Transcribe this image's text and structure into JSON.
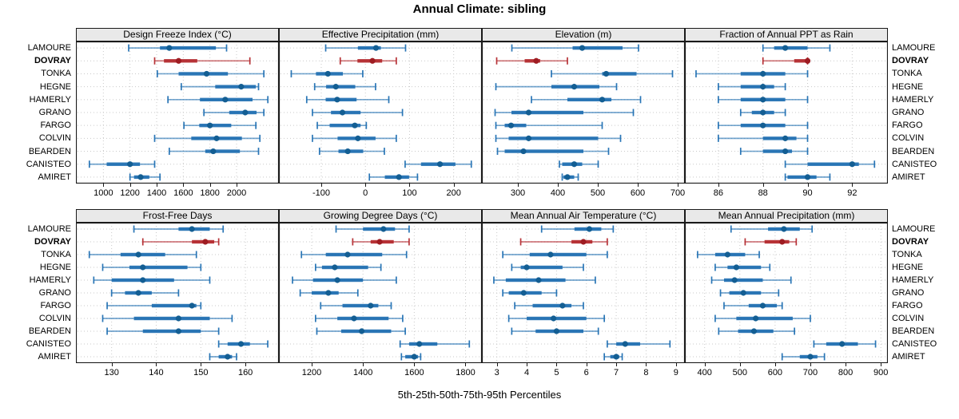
{
  "title": "Annual Climate: sibling",
  "caption": "5th-25th-50th-75th-95th Percentiles",
  "sites": [
    "LAMOURE",
    "DOVRAY",
    "TONKA",
    "HEGNE",
    "HAMERLY",
    "GRANO",
    "FARGO",
    "COLVIN",
    "BEARDEN",
    "CANISTEO",
    "AMIRET"
  ],
  "highlight_site": "DOVRAY",
  "colors": {
    "blue": "#1F6FB2",
    "blue_dark": "#135E93",
    "red": "#B3282D",
    "red_dark": "#9E1C22",
    "grid": "#C9C9C9",
    "strip_bg": "#E9E9E9",
    "panel_border": "#1A1A1A",
    "text": "#000000"
  },
  "chart_data": [
    {
      "type": "interval",
      "title": "Design Freeze Index (°C)",
      "ticks": [
        1000,
        1200,
        1400,
        1600,
        1800,
        2000
      ],
      "domain": [
        794,
        2318
      ],
      "percentile_labels": [
        "p5",
        "p25",
        "p50",
        "p75",
        "p95"
      ],
      "values": [
        [
          1190,
          1425,
          1495,
          1845,
          1925
        ],
        [
          1385,
          1455,
          1565,
          1705,
          2100
        ],
        [
          1405,
          1565,
          1775,
          1935,
          2205
        ],
        [
          1585,
          1840,
          2035,
          2145,
          2165
        ],
        [
          1485,
          1725,
          1915,
          2120,
          2235
        ],
        [
          1755,
          1945,
          2065,
          2150,
          2205
        ],
        [
          1605,
          1720,
          1800,
          1960,
          2145
        ],
        [
          1385,
          1660,
          1850,
          2040,
          2175
        ],
        [
          1495,
          1765,
          1825,
          2025,
          2165
        ],
        [
          895,
          1025,
          1200,
          1275,
          1385
        ],
        [
          1200,
          1230,
          1280,
          1345,
          1425
        ]
      ]
    },
    {
      "type": "interval",
      "title": "Effective Precipitation (mm)",
      "ticks": [
        -100,
        0,
        100,
        200
      ],
      "domain": [
        -196,
        264
      ],
      "percentile_labels": [
        "p5",
        "p25",
        "p50",
        "p75",
        "p95"
      ],
      "values": [
        [
          -90,
          -17,
          24,
          35,
          91
        ],
        [
          -57,
          -18,
          16,
          38,
          70
        ],
        [
          -168,
          -112,
          -85,
          -51,
          -6
        ],
        [
          -115,
          -89,
          -67,
          -23,
          23
        ],
        [
          -133,
          -90,
          -64,
          -20,
          53
        ],
        [
          -120,
          -78,
          -52,
          -11,
          84
        ],
        [
          -109,
          -81,
          -24,
          -11,
          2
        ],
        [
          -120,
          -63,
          -17,
          23,
          70
        ],
        [
          -104,
          -61,
          -40,
          -5,
          43
        ],
        [
          90,
          126,
          169,
          204,
          240
        ],
        [
          9,
          44,
          76,
          99,
          118
        ]
      ]
    },
    {
      "type": "interval",
      "title": "Elevation (m)",
      "ticks": [
        300,
        400,
        500,
        600,
        700
      ],
      "domain": [
        210,
        718
      ],
      "percentile_labels": [
        "p5",
        "p25",
        "p50",
        "p75",
        "p95"
      ],
      "values": [
        [
          285,
          437,
          461,
          562,
          602
        ],
        [
          247,
          317,
          346,
          356,
          424
        ],
        [
          384,
          511,
          521,
          597,
          687
        ],
        [
          245,
          384,
          441,
          504,
          547
        ],
        [
          334,
          424,
          511,
          534,
          607
        ],
        [
          243,
          284,
          327,
          464,
          589
        ],
        [
          245,
          267,
          283,
          321,
          511
        ],
        [
          245,
          277,
          327,
          501,
          557
        ],
        [
          249,
          267,
          314,
          464,
          527
        ],
        [
          404,
          411,
          441,
          461,
          501
        ],
        [
          411,
          414,
          424,
          441,
          451
        ]
      ]
    },
    {
      "type": "interval",
      "title": "Fraction of Annual PPT as Rain",
      "ticks": [
        86,
        88,
        90,
        92
      ],
      "domain": [
        84.5,
        93.6
      ],
      "percentile_labels": [
        "p5",
        "p25",
        "p50",
        "p75",
        "p95"
      ],
      "values": [
        [
          88,
          88.5,
          89,
          90,
          91
        ],
        [
          88,
          89.4,
          90,
          90,
          90
        ],
        [
          85,
          87,
          88,
          89,
          90
        ],
        [
          86,
          87,
          88,
          88.5,
          89
        ],
        [
          86,
          87,
          88,
          89,
          90
        ],
        [
          87,
          87.5,
          88,
          88.5,
          89
        ],
        [
          86,
          87,
          88,
          89,
          90
        ],
        [
          86,
          88,
          89,
          89.5,
          90
        ],
        [
          87,
          88,
          89,
          89.3,
          90
        ],
        [
          89,
          90,
          92,
          92.3,
          93
        ],
        [
          89,
          89.1,
          90,
          90.4,
          91
        ]
      ]
    },
    {
      "type": "interval",
      "title": "Frost-Free Days",
      "ticks": [
        130,
        140,
        150,
        160
      ],
      "domain": [
        122,
        167.5
      ],
      "percentile_labels": [
        "p5",
        "p25",
        "p50",
        "p75",
        "p95"
      ],
      "values": [
        [
          135,
          145,
          148,
          152,
          155
        ],
        [
          137,
          148,
          151,
          153,
          154
        ],
        [
          125,
          132,
          136,
          142,
          149
        ],
        [
          128,
          134,
          137,
          147,
          150
        ],
        [
          126,
          130,
          137,
          144,
          152
        ],
        [
          130,
          133,
          136,
          139,
          145
        ],
        [
          129,
          139,
          148,
          149,
          150
        ],
        [
          128,
          135,
          145,
          152,
          157
        ],
        [
          129,
          137,
          145,
          150,
          154
        ],
        [
          154,
          156,
          159,
          161,
          165
        ],
        [
          152,
          154,
          156,
          157,
          158
        ]
      ]
    },
    {
      "type": "interval",
      "title": "Growing Degree Days (°C)",
      "ticks": [
        1200,
        1400,
        1600,
        1800
      ],
      "domain": [
        1072,
        1864
      ],
      "percentile_labels": [
        "p5",
        "p25",
        "p50",
        "p75",
        "p95"
      ],
      "values": [
        [
          1295,
          1400,
          1480,
          1525,
          1580
        ],
        [
          1360,
          1430,
          1465,
          1520,
          1580
        ],
        [
          1160,
          1255,
          1340,
          1475,
          1570
        ],
        [
          1215,
          1240,
          1290,
          1420,
          1470
        ],
        [
          1125,
          1205,
          1300,
          1400,
          1530
        ],
        [
          1155,
          1200,
          1265,
          1305,
          1380
        ],
        [
          1235,
          1320,
          1430,
          1460,
          1510
        ],
        [
          1215,
          1300,
          1365,
          1500,
          1555
        ],
        [
          1220,
          1315,
          1395,
          1510,
          1565
        ],
        [
          1545,
          1580,
          1620,
          1690,
          1815
        ],
        [
          1550,
          1565,
          1600,
          1615,
          1625
        ]
      ]
    },
    {
      "type": "interval",
      "title": "Mean Annual Air Temperature (°C)",
      "ticks": [
        3,
        4,
        5,
        6,
        7,
        8,
        9
      ],
      "domain": [
        2.5,
        9.3
      ],
      "percentile_labels": [
        "p5",
        "p25",
        "p50",
        "p75",
        "p95"
      ],
      "values": [
        [
          4.5,
          5.6,
          6.1,
          6.5,
          6.9
        ],
        [
          3.8,
          5.5,
          5.9,
          6.2,
          6.7
        ],
        [
          3.2,
          4.1,
          4.8,
          6.0,
          6.7
        ],
        [
          3.5,
          3.8,
          4.0,
          5.2,
          5.9
        ],
        [
          2.9,
          3.3,
          4.4,
          5.3,
          6.3
        ],
        [
          3.2,
          3.4,
          3.9,
          4.5,
          5.0
        ],
        [
          3.6,
          4.2,
          5.2,
          5.5,
          5.9
        ],
        [
          3.4,
          4.0,
          4.9,
          6.0,
          6.6
        ],
        [
          3.5,
          4.3,
          5.0,
          5.9,
          6.4
        ],
        [
          6.7,
          7.0,
          7.3,
          7.8,
          8.8
        ],
        [
          6.6,
          6.8,
          7.0,
          7.1,
          7.2
        ]
      ]
    },
    {
      "type": "interval",
      "title": "Mean Annual Precipitation (mm)",
      "ticks": [
        400,
        500,
        600,
        700,
        800,
        900
      ],
      "domain": [
        344,
        920
      ],
      "percentile_labels": [
        "p5",
        "p25",
        "p50",
        "p75",
        "p95"
      ],
      "values": [
        [
          475,
          580,
          625,
          670,
          705
        ],
        [
          515,
          570,
          620,
          640,
          660
        ],
        [
          380,
          430,
          465,
          515,
          555
        ],
        [
          430,
          465,
          490,
          560,
          585
        ],
        [
          420,
          455,
          485,
          565,
          645
        ],
        [
          445,
          470,
          510,
          560,
          610
        ],
        [
          455,
          525,
          565,
          605,
          620
        ],
        [
          430,
          490,
          545,
          650,
          700
        ],
        [
          440,
          495,
          540,
          595,
          655
        ],
        [
          710,
          745,
          790,
          835,
          885
        ],
        [
          620,
          670,
          700,
          720,
          740
        ]
      ]
    }
  ]
}
